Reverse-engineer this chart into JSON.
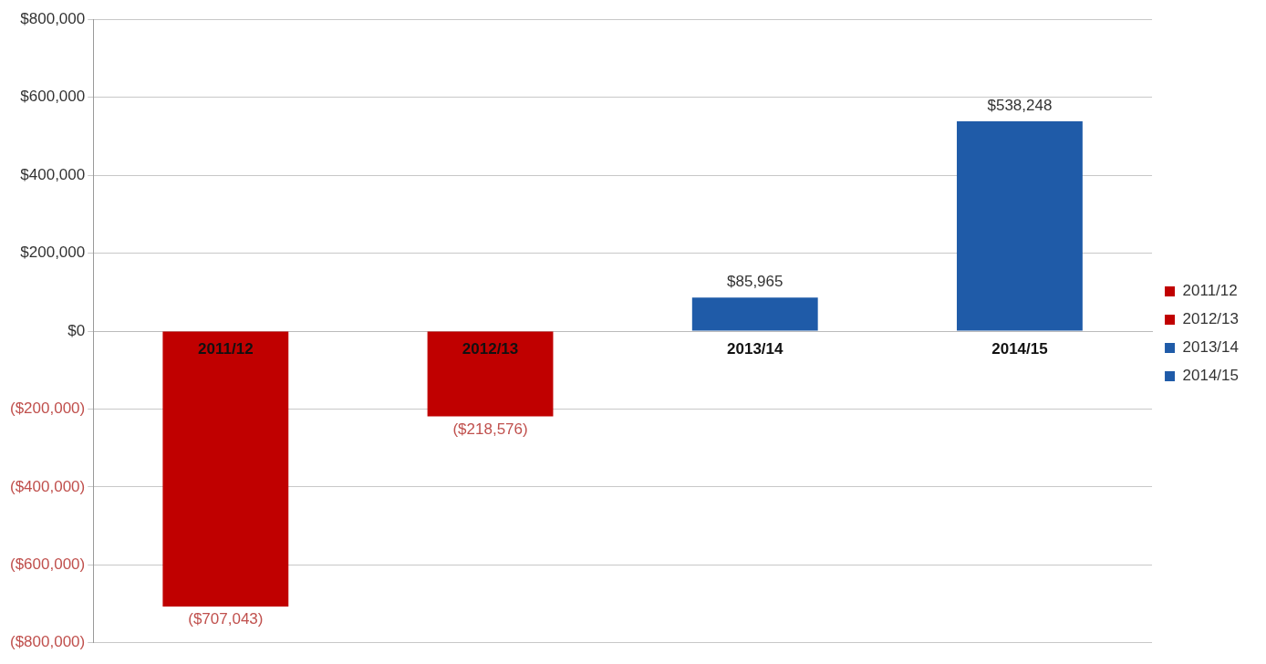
{
  "chart_data": {
    "type": "bar",
    "categories": [
      "2011/12",
      "2012/13",
      "2013/14",
      "2014/15"
    ],
    "series": [
      {
        "name": "2011/12",
        "color": "#c00000",
        "values": [
          -707043,
          null,
          null,
          null
        ],
        "value_labels": [
          "($707,043)",
          null,
          null,
          null
        ]
      },
      {
        "name": "2012/13",
        "color": "#c00000",
        "values": [
          null,
          -218576,
          null,
          null
        ],
        "value_labels": [
          null,
          "($218,576)",
          null,
          null
        ]
      },
      {
        "name": "2013/14",
        "color": "#1f5ba8",
        "values": [
          null,
          null,
          85965,
          null
        ],
        "value_labels": [
          null,
          null,
          "$85,965",
          null
        ]
      },
      {
        "name": "2014/15",
        "color": "#1f5ba8",
        "values": [
          null,
          null,
          null,
          538248
        ],
        "value_labels": [
          null,
          null,
          null,
          "$538,248"
        ]
      }
    ],
    "ylim": [
      -800000,
      800000
    ],
    "yticks": [
      {
        "value": -800000,
        "label": "($800,000)"
      },
      {
        "value": -600000,
        "label": "($600,000)"
      },
      {
        "value": -400000,
        "label": "($400,000)"
      },
      {
        "value": -200000,
        "label": "($200,000)"
      },
      {
        "value": 0,
        "label": "$0"
      },
      {
        "value": 200000,
        "label": "$200,000"
      },
      {
        "value": 400000,
        "label": "$400,000"
      },
      {
        "value": 600000,
        "label": "$600,000"
      },
      {
        "value": 800000,
        "label": "$800,000"
      }
    ],
    "grid": "y",
    "legend": "right"
  }
}
